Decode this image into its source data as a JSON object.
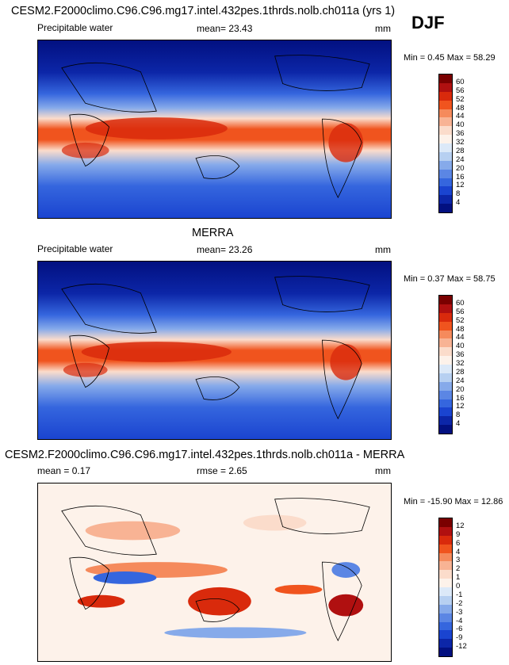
{
  "case_name": "CESM2.F2000climo.C96.C96.mg17.intel.432pes.1thrds.nolb.ch011a (yrs 1)",
  "season": "DJF",
  "panels": [
    {
      "id": "model",
      "title": "",
      "variable": "Precipitable water",
      "stat_label": "mean=  23.43",
      "units": "mm",
      "minmax": "Min =  0.45 Max =  58.29",
      "colorbar": {
        "labels": [
          "60",
          "56",
          "52",
          "48",
          "44",
          "40",
          "36",
          "32",
          "28",
          "24",
          "20",
          "16",
          "12",
          "8",
          "4"
        ],
        "colors": [
          "#7a0000",
          "#b01010",
          "#d92a0c",
          "#f0541e",
          "#f58a5c",
          "#f8b394",
          "#fbdccb",
          "#fdf2ea",
          "#dce9f8",
          "#b7d0f1",
          "#86aaea",
          "#5b86e4",
          "#3566de",
          "#1a44d0",
          "#0c26a8",
          "#021080"
        ]
      }
    },
    {
      "id": "obs",
      "title": "MERRA",
      "variable": "Precipitable water",
      "stat_label": "mean=  23.26",
      "units": "mm",
      "minmax": "Min =  0.37 Max =  58.75",
      "colorbar": {
        "labels": [
          "60",
          "56",
          "52",
          "48",
          "44",
          "40",
          "36",
          "32",
          "28",
          "24",
          "20",
          "16",
          "12",
          "8",
          "4"
        ],
        "colors": [
          "#7a0000",
          "#b01010",
          "#d92a0c",
          "#f0541e",
          "#f58a5c",
          "#f8b394",
          "#fbdccb",
          "#fdf2ea",
          "#dce9f8",
          "#b7d0f1",
          "#86aaea",
          "#5b86e4",
          "#3566de",
          "#1a44d0",
          "#0c26a8",
          "#021080"
        ]
      }
    },
    {
      "id": "diff",
      "title": "CESM2.F2000climo.C96.C96.mg17.intel.432pes.1thrds.nolb.ch011a - MERRA",
      "mean_label": "mean =   0.17",
      "rmse_label": "rmse =   2.65",
      "units": "mm",
      "minmax": "Min = -15.90 Max =  12.86",
      "colorbar": {
        "labels": [
          "12",
          "9",
          "6",
          "4",
          "3",
          "2",
          "1",
          "0",
          "-1",
          "-2",
          "-3",
          "-4",
          "-6",
          "-9",
          "-12"
        ],
        "colors": [
          "#7a0000",
          "#b01010",
          "#d92a0c",
          "#f0541e",
          "#f58a5c",
          "#f8b394",
          "#fbdccb",
          "#fdf2ea",
          "#dce9f8",
          "#b7d0f1",
          "#86aaea",
          "#5b86e4",
          "#3566de",
          "#1a44d0",
          "#0c26a8",
          "#021080"
        ]
      }
    }
  ]
}
